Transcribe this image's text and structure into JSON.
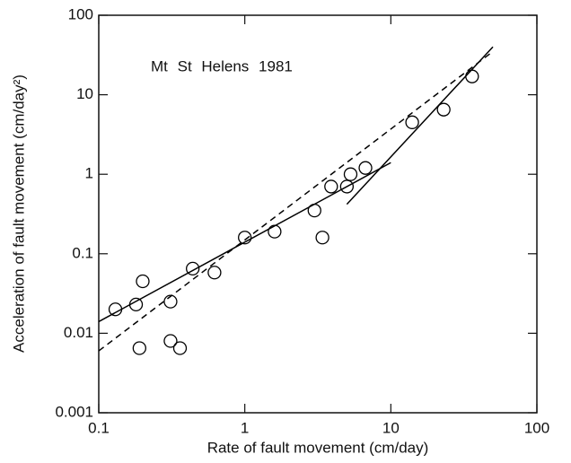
{
  "chart_data": {
    "type": "scatter",
    "annotation": "Mt St Helens 1981",
    "x_label": "Rate of fault movement (cm/day)",
    "y_label": "Acceleration of fault movement (cm/day²)",
    "x": [
      0.13,
      0.18,
      0.2,
      0.19,
      0.31,
      0.31,
      0.36,
      0.44,
      0.62,
      1.0,
      1.6,
      3.0,
      3.4,
      3.9,
      5.0,
      5.3,
      6.7,
      14,
      23,
      36
    ],
    "values": [
      0.02,
      0.023,
      0.045,
      0.0065,
      0.025,
      0.008,
      0.0065,
      0.065,
      0.058,
      0.16,
      0.19,
      0.35,
      0.16,
      0.7,
      0.7,
      1.0,
      1.2,
      4.5,
      6.5,
      17
    ],
    "color": "#000000",
    "lines": [
      {
        "x": [
          0.1,
          10
        ],
        "values": [
          0.014,
          1.4
        ],
        "style": "solid"
      },
      {
        "x": [
          5,
          50
        ],
        "values": [
          0.42,
          40
        ],
        "style": "solid"
      },
      {
        "x": [
          0.1,
          50
        ],
        "values": [
          0.006,
          35
        ],
        "style": "dashed"
      }
    ],
    "xlim": [
      0.1,
      100
    ],
    "ylim": [
      0.001,
      100
    ],
    "xticks": [
      0.1,
      1,
      10,
      100
    ],
    "yticks": [
      0.001,
      0.01,
      0.1,
      1,
      10,
      100
    ],
    "xlog": true,
    "ylog": true,
    "grid": false
  }
}
